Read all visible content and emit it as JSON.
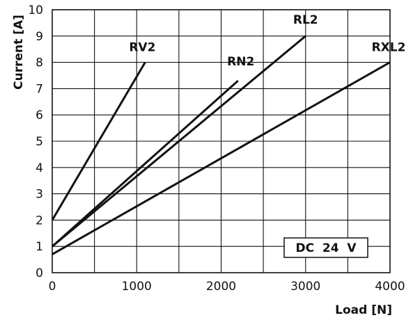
{
  "chart_data": {
    "type": "line",
    "xlabel": "Load  [N]",
    "ylabel": "Current  [A]",
    "xlim": [
      0,
      4000
    ],
    "ylim": [
      0,
      10
    ],
    "x_ticks": [
      "0",
      "1000",
      "2000",
      "3000",
      "4000"
    ],
    "y_ticks": [
      "0",
      "1",
      "2",
      "3",
      "4",
      "5",
      "6",
      "7",
      "8",
      "9",
      "10"
    ],
    "grid": true,
    "annotation": "DC  24  V",
    "series": [
      {
        "name": "RV2",
        "x": [
          0,
          1100
        ],
        "y": [
          2.0,
          8.0
        ]
      },
      {
        "name": "RN2",
        "x": [
          0,
          2200
        ],
        "y": [
          1.0,
          7.3
        ]
      },
      {
        "name": "RL2",
        "x": [
          0,
          3000
        ],
        "y": [
          1.0,
          9.0
        ]
      },
      {
        "name": "RXL2",
        "x": [
          0,
          4000
        ],
        "y": [
          0.7,
          8.0
        ]
      }
    ]
  }
}
